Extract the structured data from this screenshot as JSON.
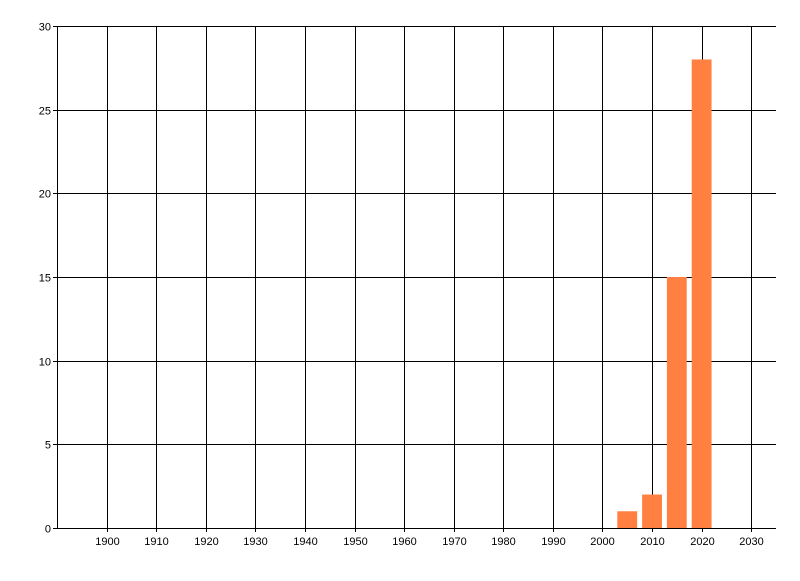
{
  "chart_data": {
    "type": "bar",
    "title": "",
    "xlabel": "",
    "ylabel": "",
    "x": [
      2005,
      2010,
      2015,
      2020
    ],
    "values": [
      1,
      2,
      15,
      28
    ],
    "bar_width_years": 4,
    "xlim": [
      1890,
      2035
    ],
    "ylim": [
      0,
      30
    ],
    "xticks": [
      1900,
      1910,
      1920,
      1930,
      1940,
      1950,
      1960,
      1970,
      1980,
      1990,
      2000,
      2010,
      2020,
      2030
    ],
    "yticks": [
      0,
      5,
      10,
      15,
      20,
      25,
      30
    ],
    "grid": true,
    "bar_color": "#FF8040",
    "grid_color": "#000000"
  }
}
